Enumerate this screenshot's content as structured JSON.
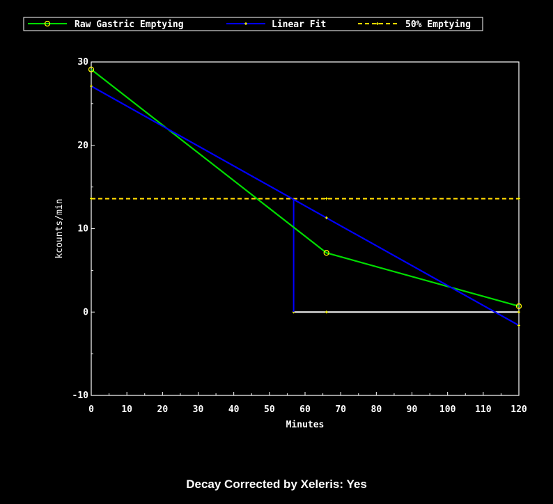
{
  "chart_data": {
    "type": "line",
    "xlabel": "Minutes",
    "ylabel": "kcounts/min",
    "xlim": [
      0,
      120
    ],
    "ylim": [
      -10,
      30
    ],
    "x_ticks": [
      0,
      10,
      20,
      30,
      40,
      50,
      60,
      70,
      80,
      90,
      100,
      110,
      120
    ],
    "y_ticks": [
      -10,
      0,
      10,
      20,
      30
    ],
    "grid": false,
    "legend_position": "top-left",
    "series": [
      {
        "name": "Raw Gastric Emptying",
        "color": "#00dd00",
        "marker": "circle",
        "x": [
          0,
          66,
          120
        ],
        "y": [
          29.1,
          7.1,
          0.7
        ]
      },
      {
        "name": "Linear Fit",
        "color": "#0000ff",
        "marker": "plus",
        "x": [
          0,
          66,
          120
        ],
        "y": [
          27.1,
          11.3,
          -1.6
        ]
      },
      {
        "name": "50% Emptying",
        "color": "#ffd700",
        "style": "dashed",
        "marker": "plus",
        "x": [
          0,
          66,
          120
        ],
        "y": [
          13.6,
          13.6,
          13.6
        ]
      }
    ],
    "annotations": {
      "half_time_x": 56.8,
      "half_time_y": 13.6,
      "drop_line_color": "#0000ff",
      "baseline_color": "#ffffff",
      "baseline_marker_x": [
        56.8,
        66,
        120
      ]
    }
  },
  "footer": {
    "text": "Decay Corrected by Xeleris: Yes"
  }
}
